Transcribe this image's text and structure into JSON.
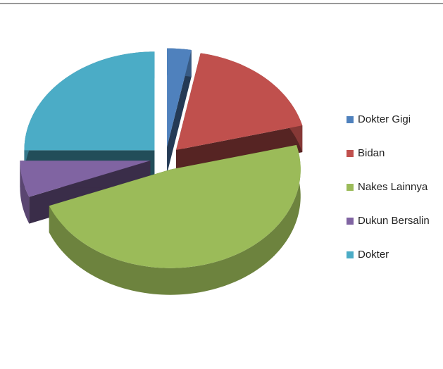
{
  "chart_data": {
    "type": "pie",
    "three_d": true,
    "exploded": true,
    "categories": [
      "Dokter Gigi",
      "Bidan",
      "Nakes Lainnya",
      "Dukun Bersalin",
      "Dokter"
    ],
    "values": [
      3,
      18,
      48,
      6,
      25
    ],
    "colors": [
      "#4f81bd",
      "#c0504d",
      "#9bbb59",
      "#8064a2",
      "#4bacc6"
    ],
    "legend": "right"
  }
}
